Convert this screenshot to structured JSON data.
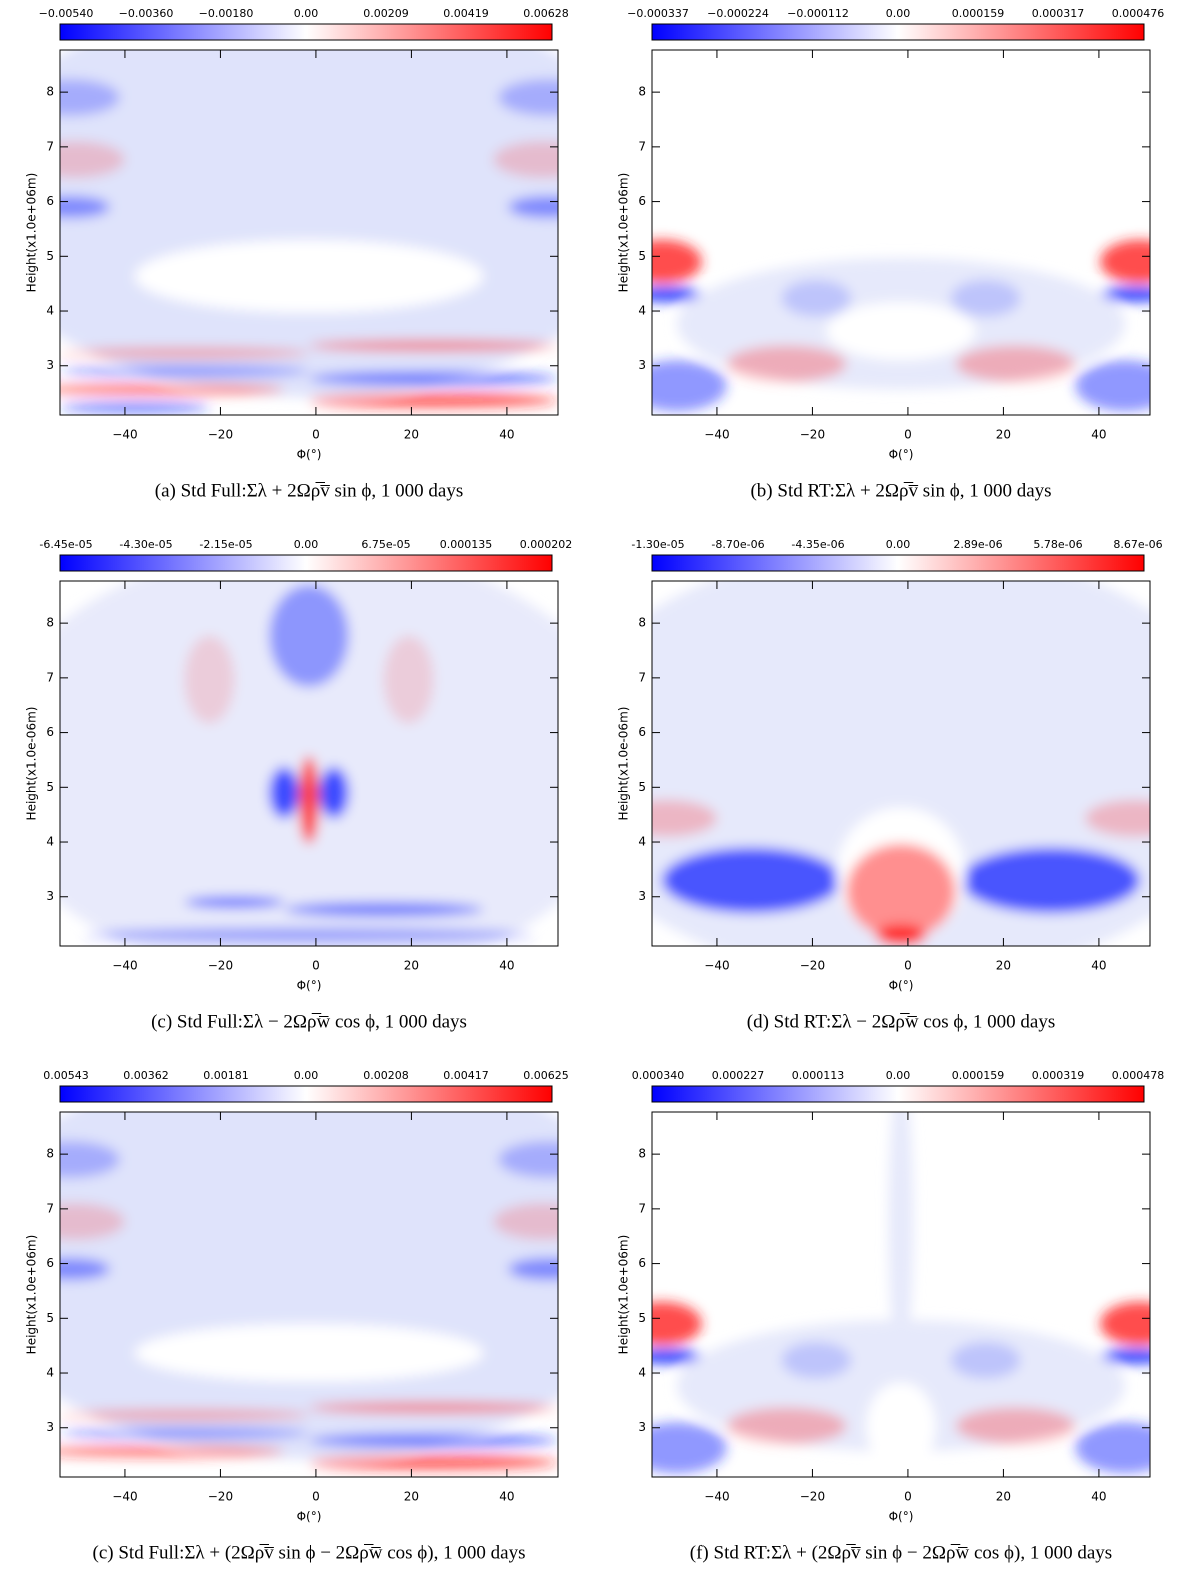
{
  "panels": [
    {
      "caption": "(a) Std Full:Σλ + 2Ωρ̅v̅ sin ϕ, 1 000 days",
      "colorbar_labels": [
        "−0.00540",
        "−0.00360",
        "−0.00180",
        "0.00",
        "0.00209",
        "0.00419",
        "0.00628"
      ],
      "ylabel": "Height(x1.0e+06m)",
      "xlabel": "Φ(°)"
    },
    {
      "caption": "(b) Std RT:Σλ + 2Ωρ̅v̅ sin ϕ, 1 000 days",
      "colorbar_labels": [
        "−0.000337",
        "−0.000224",
        "−0.000112",
        "0.00",
        "0.000159",
        "0.000317",
        "0.000476"
      ],
      "ylabel": "Height(x1.0e+06m)",
      "xlabel": "Φ(°)"
    },
    {
      "caption": "(c) Std Full:Σλ − 2Ωρ̅w̅ cos ϕ, 1 000 days",
      "colorbar_labels": [
        "-6.45e-05",
        "-4.30e-05",
        "-2.15e-05",
        "0.00",
        "6.75e-05",
        "0.000135",
        "0.000202"
      ],
      "ylabel": "Height(x1.0e-06m)",
      "xlabel": "Φ(°)"
    },
    {
      "caption": "(d) Std RT:Σλ − 2Ωρ̅w̅ cos ϕ, 1 000 days",
      "colorbar_labels": [
        "-1.30e-05",
        "-8.70e-06",
        "-4.35e-06",
        "0.00",
        "2.89e-06",
        "5.78e-06",
        "8.67e-06"
      ],
      "ylabel": "Height(x1.0e-06m)",
      "xlabel": "Φ(°)"
    },
    {
      "caption": "(c) Std Full:Σλ + (2Ωρ̅v̅ sin ϕ − 2Ωρ̅w̅ cos ϕ), 1 000 days",
      "colorbar_labels": [
        "0.00543",
        "0.00362",
        "0.00181",
        "0.00",
        "0.00208",
        "0.00417",
        "0.00625"
      ],
      "ylabel": "Height(x1.0e+06m)",
      "xlabel": "Φ(°)"
    },
    {
      "caption": "(f) Std RT:Σλ + (2Ωρ̅v̅ sin ϕ − 2Ωρ̅w̅ cos ϕ), 1 000 days",
      "colorbar_labels": [
        "0.000340",
        "0.000227",
        "0.000113",
        "0.00",
        "0.000159",
        "0.000319",
        "0.000478"
      ],
      "ylabel": "Height(x1.0e+06m)",
      "xlabel": "Φ(°)"
    }
  ],
  "axes": {
    "xlim": [
      -53.6,
      50.7
    ],
    "ylim": [
      2.1,
      8.77
    ],
    "xticks": [
      {
        "value": -40,
        "label": "−40"
      },
      {
        "value": -20,
        "label": "−20"
      },
      0,
      20,
      40
    ],
    "yticks": [
      3,
      4,
      5,
      6,
      7,
      8
    ]
  }
}
